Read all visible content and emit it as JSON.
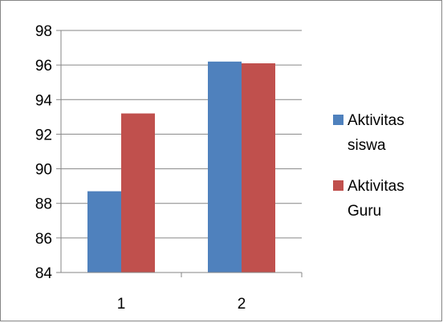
{
  "chart_data": {
    "type": "bar",
    "categories": [
      "1",
      "2"
    ],
    "series": [
      {
        "name": "Aktivitas siswa",
        "name_lines": [
          "Aktivitas",
          "siswa"
        ],
        "values": [
          88.7,
          96.2
        ],
        "color": "#4f81bd"
      },
      {
        "name": "Aktivitas Guru",
        "name_lines": [
          "Aktivitas",
          "Guru"
        ],
        "values": [
          93.2,
          96.1
        ],
        "color": "#c0504d"
      }
    ],
    "ylim": [
      84,
      98
    ],
    "yticks": [
      98,
      96,
      94,
      92,
      90,
      88,
      86,
      84
    ],
    "grid": true,
    "legend_position": "right",
    "title": "",
    "xlabel": "",
    "ylabel": ""
  }
}
